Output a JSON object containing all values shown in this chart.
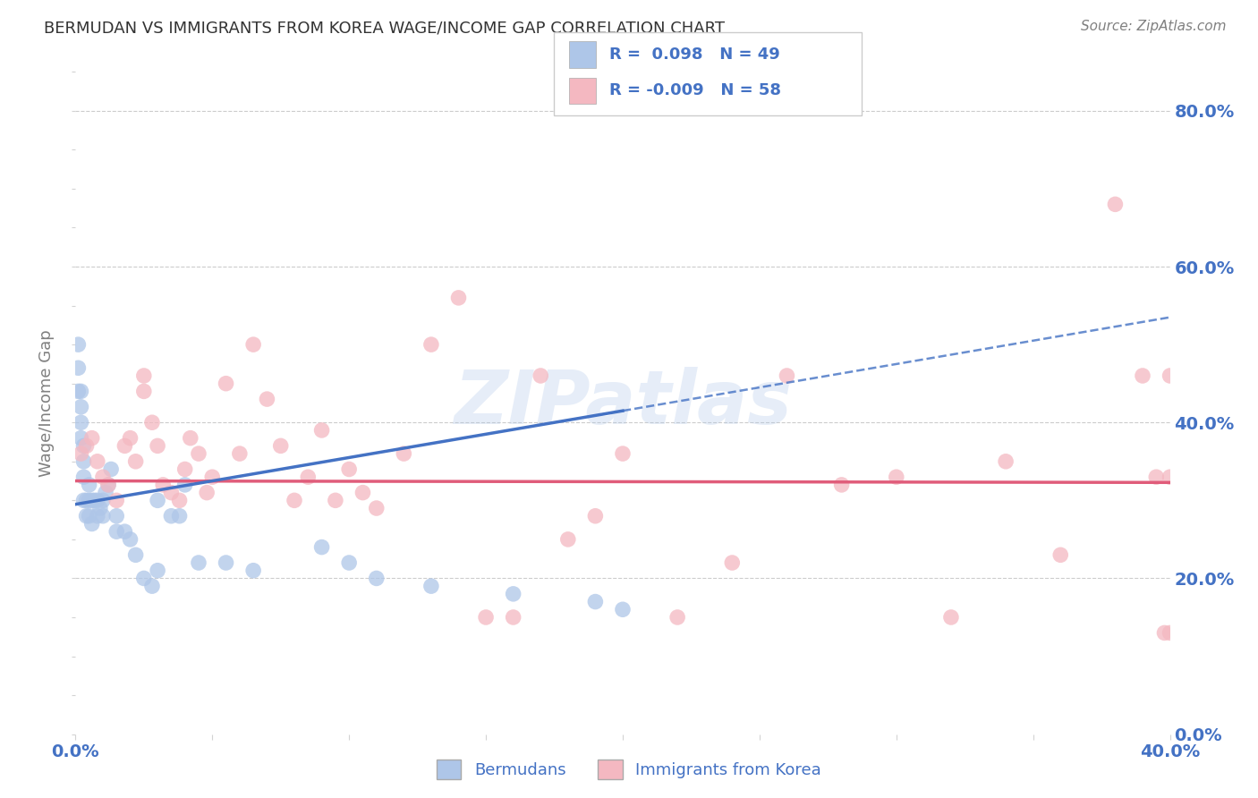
{
  "title": "BERMUDAN VS IMMIGRANTS FROM KOREA WAGE/INCOME GAP CORRELATION CHART",
  "source": "Source: ZipAtlas.com",
  "ylabel": "Wage/Income Gap",
  "xlim": [
    0.0,
    0.4
  ],
  "ylim": [
    0.0,
    0.85
  ],
  "watermark": "ZIPatlas",
  "group1_color": "#aec6e8",
  "group2_color": "#f4b8c1",
  "group1_line_color": "#4472c4",
  "group2_line_color": "#e05c7a",
  "group1_label": "Bermudans",
  "group2_label": "Immigrants from Korea",
  "R1": 0.098,
  "N1": 49,
  "R2": -0.009,
  "N2": 58,
  "bermudans_x": [
    0.001,
    0.001,
    0.001,
    0.002,
    0.002,
    0.002,
    0.002,
    0.003,
    0.003,
    0.003,
    0.003,
    0.004,
    0.004,
    0.005,
    0.005,
    0.005,
    0.006,
    0.006,
    0.007,
    0.008,
    0.008,
    0.009,
    0.01,
    0.01,
    0.011,
    0.012,
    0.013,
    0.015,
    0.015,
    0.018,
    0.02,
    0.022,
    0.025,
    0.028,
    0.03,
    0.03,
    0.035,
    0.038,
    0.04,
    0.045,
    0.055,
    0.065,
    0.09,
    0.1,
    0.11,
    0.13,
    0.16,
    0.19,
    0.2
  ],
  "bermudans_y": [
    0.5,
    0.47,
    0.44,
    0.44,
    0.42,
    0.4,
    0.38,
    0.37,
    0.35,
    0.33,
    0.3,
    0.3,
    0.28,
    0.32,
    0.3,
    0.28,
    0.3,
    0.27,
    0.3,
    0.3,
    0.28,
    0.29,
    0.3,
    0.28,
    0.31,
    0.32,
    0.34,
    0.28,
    0.26,
    0.26,
    0.25,
    0.23,
    0.2,
    0.19,
    0.21,
    0.3,
    0.28,
    0.28,
    0.32,
    0.22,
    0.22,
    0.21,
    0.24,
    0.22,
    0.2,
    0.19,
    0.18,
    0.17,
    0.16
  ],
  "korea_x": [
    0.002,
    0.004,
    0.006,
    0.008,
    0.01,
    0.012,
    0.015,
    0.018,
    0.02,
    0.022,
    0.025,
    0.025,
    0.028,
    0.03,
    0.032,
    0.035,
    0.038,
    0.04,
    0.042,
    0.045,
    0.048,
    0.05,
    0.055,
    0.06,
    0.065,
    0.07,
    0.075,
    0.08,
    0.085,
    0.09,
    0.095,
    0.1,
    0.105,
    0.11,
    0.12,
    0.13,
    0.14,
    0.15,
    0.16,
    0.17,
    0.18,
    0.19,
    0.2,
    0.22,
    0.24,
    0.26,
    0.28,
    0.3,
    0.32,
    0.34,
    0.36,
    0.38,
    0.39,
    0.395,
    0.398,
    0.4,
    0.4,
    0.4
  ],
  "korea_y": [
    0.36,
    0.37,
    0.38,
    0.35,
    0.33,
    0.32,
    0.3,
    0.37,
    0.38,
    0.35,
    0.44,
    0.46,
    0.4,
    0.37,
    0.32,
    0.31,
    0.3,
    0.34,
    0.38,
    0.36,
    0.31,
    0.33,
    0.45,
    0.36,
    0.5,
    0.43,
    0.37,
    0.3,
    0.33,
    0.39,
    0.3,
    0.34,
    0.31,
    0.29,
    0.36,
    0.5,
    0.56,
    0.15,
    0.15,
    0.46,
    0.25,
    0.28,
    0.36,
    0.15,
    0.22,
    0.46,
    0.32,
    0.33,
    0.15,
    0.35,
    0.23,
    0.68,
    0.46,
    0.33,
    0.13,
    0.33,
    0.46,
    0.13
  ],
  "background_color": "#ffffff",
  "grid_color": "#cccccc",
  "title_color": "#333333",
  "tick_color": "#4472c4"
}
